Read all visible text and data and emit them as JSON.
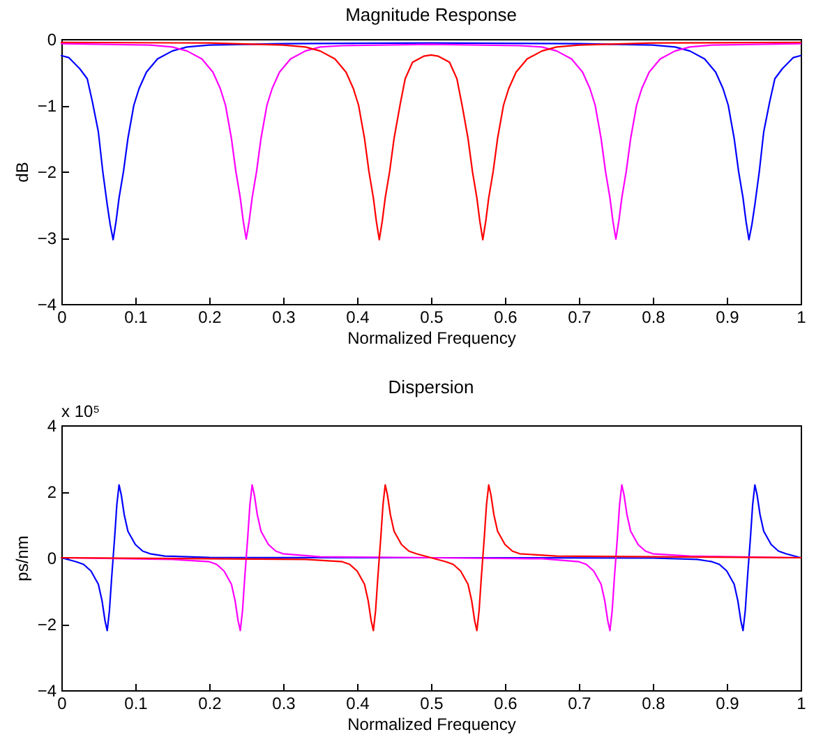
{
  "chart_data": [
    {
      "type": "line",
      "title": "Magnitude Response",
      "xlabel": "Normalized Frequency",
      "ylabel": "dB",
      "xlim": [
        0,
        1
      ],
      "xticks": [
        0,
        0.1,
        0.2,
        0.3,
        0.4,
        0.5,
        0.6,
        0.7,
        0.8,
        0.9,
        1
      ],
      "ylim": [
        -4,
        0
      ],
      "yticks": [
        -4,
        -3,
        -2,
        -1,
        0
      ],
      "grid": false,
      "line_style": "solid",
      "marker": "none",
      "series": [
        {
          "color": "#0000ff",
          "x": [
            0,
            0.01,
            0.025,
            0.035,
            0.042,
            0.05,
            0.056,
            0.062,
            0.066,
            0.07,
            0.074,
            0.078,
            0.084,
            0.09,
            0.098,
            0.105,
            0.115,
            0.13,
            0.15,
            0.17,
            0.2,
            0.3,
            0.5,
            0.7,
            0.8,
            0.83,
            0.85,
            0.87,
            0.885,
            0.895,
            0.902,
            0.91,
            0.916,
            0.922,
            0.926,
            0.93,
            0.934,
            0.938,
            0.944,
            0.95,
            0.958,
            0.965,
            0.975,
            0.99,
            1
          ],
          "values": [
            -0.25,
            -0.28,
            -0.45,
            -0.6,
            -0.95,
            -1.4,
            -2.0,
            -2.5,
            -2.8,
            -3.03,
            -2.75,
            -2.4,
            -2.0,
            -1.5,
            -1.0,
            -0.75,
            -0.5,
            -0.3,
            -0.18,
            -0.12,
            -0.09,
            -0.07,
            -0.06,
            -0.07,
            -0.09,
            -0.12,
            -0.18,
            -0.3,
            -0.5,
            -0.75,
            -1.0,
            -1.5,
            -2.0,
            -2.4,
            -2.75,
            -3.03,
            -2.8,
            -2.5,
            -2.0,
            -1.4,
            -0.95,
            -0.6,
            -0.45,
            -0.28,
            -0.25
          ]
        },
        {
          "color": "#ff00ff",
          "x": [
            0,
            0.12,
            0.15,
            0.17,
            0.19,
            0.205,
            0.215,
            0.222,
            0.23,
            0.236,
            0.242,
            0.246,
            0.25,
            0.254,
            0.258,
            0.264,
            0.27,
            0.278,
            0.285,
            0.295,
            0.31,
            0.33,
            0.35,
            0.38,
            0.5,
            0.62,
            0.65,
            0.67,
            0.69,
            0.705,
            0.715,
            0.722,
            0.73,
            0.736,
            0.742,
            0.746,
            0.75,
            0.754,
            0.758,
            0.764,
            0.77,
            0.778,
            0.785,
            0.795,
            0.81,
            0.83,
            0.85,
            0.88,
            1
          ],
          "values": [
            -0.07,
            -0.09,
            -0.12,
            -0.18,
            -0.3,
            -0.5,
            -0.75,
            -1.0,
            -1.5,
            -2.0,
            -2.4,
            -2.75,
            -3.02,
            -2.75,
            -2.4,
            -2.0,
            -1.5,
            -1.0,
            -0.75,
            -0.5,
            -0.3,
            -0.18,
            -0.12,
            -0.1,
            -0.08,
            -0.1,
            -0.12,
            -0.18,
            -0.3,
            -0.5,
            -0.75,
            -1.0,
            -1.5,
            -2.0,
            -2.4,
            -2.75,
            -3.02,
            -2.75,
            -2.4,
            -2.0,
            -1.5,
            -1.0,
            -0.75,
            -0.5,
            -0.3,
            -0.18,
            -0.12,
            -0.09,
            -0.07
          ]
        },
        {
          "color": "#ff0000",
          "x": [
            0,
            0.2,
            0.3,
            0.33,
            0.35,
            0.37,
            0.385,
            0.395,
            0.402,
            0.41,
            0.416,
            0.422,
            0.426,
            0.43,
            0.434,
            0.438,
            0.444,
            0.45,
            0.458,
            0.465,
            0.475,
            0.49,
            0.5,
            0.51,
            0.525,
            0.535,
            0.542,
            0.55,
            0.556,
            0.562,
            0.566,
            0.57,
            0.574,
            0.578,
            0.584,
            0.59,
            0.598,
            0.605,
            0.615,
            0.63,
            0.65,
            0.67,
            0.7,
            0.8,
            1
          ],
          "values": [
            -0.05,
            -0.06,
            -0.09,
            -0.12,
            -0.18,
            -0.3,
            -0.5,
            -0.75,
            -1.0,
            -1.5,
            -2.0,
            -2.4,
            -2.75,
            -3.03,
            -2.75,
            -2.4,
            -2.0,
            -1.5,
            -1.0,
            -0.6,
            -0.35,
            -0.26,
            -0.24,
            -0.26,
            -0.35,
            -0.6,
            -1.0,
            -1.5,
            -2.0,
            -2.4,
            -2.75,
            -3.03,
            -2.75,
            -2.4,
            -2.0,
            -1.5,
            -1.0,
            -0.75,
            -0.5,
            -0.3,
            -0.18,
            -0.12,
            -0.09,
            -0.06,
            -0.05
          ]
        }
      ]
    },
    {
      "type": "line",
      "title": "Dispersion",
      "xlabel": "Normalized Frequency",
      "ylabel": "ps/nm",
      "annotations": [
        "x 10⁵"
      ],
      "xlim": [
        0,
        1
      ],
      "xticks": [
        0,
        0.1,
        0.2,
        0.3,
        0.4,
        0.5,
        0.6,
        0.7,
        0.8,
        0.9,
        1
      ],
      "ylim": [
        -4,
        4
      ],
      "yticks": [
        -4,
        -2,
        0,
        2,
        4
      ],
      "grid": false,
      "line_style": "solid",
      "marker": "none",
      "series": [
        {
          "color": "#0000ff",
          "x": [
            0,
            0.02,
            0.03,
            0.04,
            0.05,
            0.055,
            0.059,
            0.062,
            0.065,
            0.068,
            0.07,
            0.072,
            0.075,
            0.078,
            0.081,
            0.085,
            0.09,
            0.1,
            0.11,
            0.12,
            0.14,
            0.2,
            0.5,
            0.8,
            0.86,
            0.88,
            0.89,
            0.9,
            0.91,
            0.915,
            0.919,
            0.922,
            0.925,
            0.928,
            0.93,
            0.932,
            0.935,
            0.938,
            0.941,
            0.945,
            0.95,
            0.96,
            0.97,
            0.98,
            1
          ],
          "values": [
            0,
            -0.12,
            -0.2,
            -0.4,
            -0.8,
            -1.3,
            -1.9,
            -2.2,
            -1.6,
            -0.6,
            0,
            0.6,
            1.6,
            2.2,
            1.9,
            1.3,
            0.8,
            0.4,
            0.2,
            0.12,
            0.05,
            0.01,
            0,
            -0.01,
            -0.05,
            -0.12,
            -0.2,
            -0.4,
            -0.8,
            -1.3,
            -1.9,
            -2.2,
            -1.6,
            -0.6,
            0,
            0.6,
            1.6,
            2.2,
            1.9,
            1.3,
            0.8,
            0.4,
            0.2,
            0.12,
            0
          ]
        },
        {
          "color": "#ff00ff",
          "x": [
            0,
            0.15,
            0.2,
            0.21,
            0.22,
            0.23,
            0.235,
            0.239,
            0.242,
            0.245,
            0.248,
            0.25,
            0.252,
            0.255,
            0.258,
            0.261,
            0.265,
            0.27,
            0.28,
            0.29,
            0.3,
            0.35,
            0.5,
            0.65,
            0.7,
            0.71,
            0.72,
            0.73,
            0.735,
            0.739,
            0.742,
            0.745,
            0.748,
            0.75,
            0.752,
            0.755,
            0.758,
            0.761,
            0.765,
            0.77,
            0.78,
            0.79,
            0.8,
            0.85,
            1
          ],
          "values": [
            0,
            -0.05,
            -0.12,
            -0.2,
            -0.4,
            -0.8,
            -1.3,
            -1.9,
            -2.2,
            -1.6,
            -0.6,
            0,
            0.6,
            1.6,
            2.2,
            1.9,
            1.3,
            0.8,
            0.4,
            0.2,
            0.12,
            0.03,
            0,
            -0.03,
            -0.12,
            -0.2,
            -0.4,
            -0.8,
            -1.3,
            -1.9,
            -2.2,
            -1.6,
            -0.6,
            0,
            0.6,
            1.6,
            2.2,
            1.9,
            1.3,
            0.8,
            0.4,
            0.2,
            0.12,
            0.05,
            0
          ]
        },
        {
          "color": "#ff0000",
          "x": [
            0,
            0.33,
            0.38,
            0.39,
            0.4,
            0.41,
            0.415,
            0.419,
            0.422,
            0.425,
            0.428,
            0.43,
            0.432,
            0.435,
            0.438,
            0.441,
            0.445,
            0.45,
            0.46,
            0.47,
            0.48,
            0.5,
            0.52,
            0.53,
            0.54,
            0.55,
            0.555,
            0.559,
            0.562,
            0.565,
            0.568,
            0.57,
            0.572,
            0.575,
            0.578,
            0.581,
            0.585,
            0.59,
            0.6,
            0.61,
            0.62,
            0.67,
            1
          ],
          "values": [
            0,
            -0.05,
            -0.12,
            -0.2,
            -0.4,
            -0.8,
            -1.3,
            -1.9,
            -2.2,
            -1.6,
            -0.6,
            0,
            0.6,
            1.6,
            2.2,
            1.9,
            1.3,
            0.8,
            0.4,
            0.2,
            0.12,
            0,
            -0.12,
            -0.2,
            -0.4,
            -0.8,
            -1.3,
            -1.9,
            -2.2,
            -1.6,
            -0.6,
            0,
            0.6,
            1.6,
            2.2,
            1.9,
            1.3,
            0.8,
            0.4,
            0.2,
            0.12,
            0.05,
            0
          ]
        }
      ]
    }
  ]
}
